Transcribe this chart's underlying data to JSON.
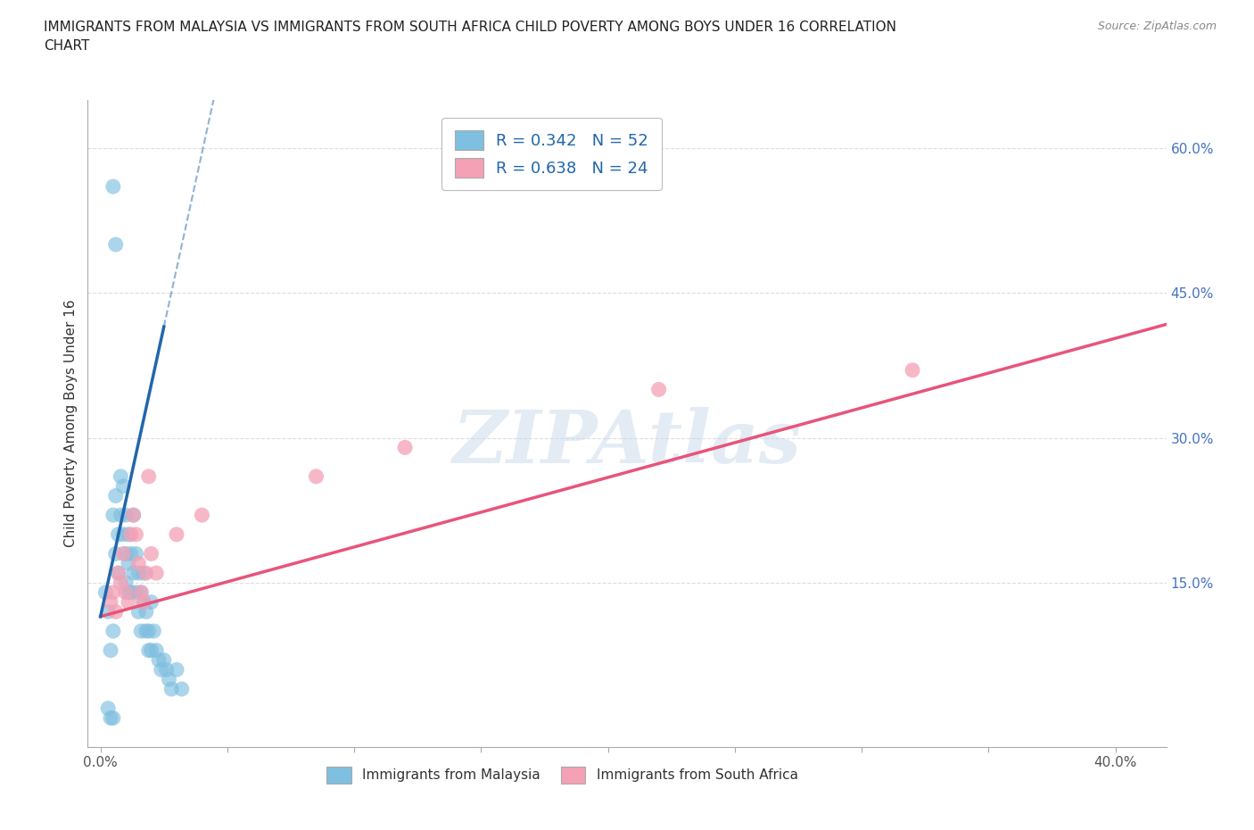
{
  "title": "IMMIGRANTS FROM MALAYSIA VS IMMIGRANTS FROM SOUTH AFRICA CHILD POVERTY AMONG BOYS UNDER 16 CORRELATION\nCHART",
  "source": "Source: ZipAtlas.com",
  "ylabel": "Child Poverty Among Boys Under 16",
  "xlim": [
    -0.005,
    0.42
  ],
  "ylim": [
    -0.02,
    0.65
  ],
  "xtick_vals": [
    0.0,
    0.05,
    0.1,
    0.15,
    0.2,
    0.25,
    0.3,
    0.35,
    0.4
  ],
  "xtick_labels_show": [
    "0.0%",
    "",
    "",
    "",
    "",
    "",
    "",
    "",
    "40.0%"
  ],
  "ytick_right_vals": [
    0.15,
    0.3,
    0.45,
    0.6
  ],
  "ytick_right_labels": [
    "15.0%",
    "30.0%",
    "45.0%",
    "60.0%"
  ],
  "malaysia_dot_color": "#7fbfdf",
  "sa_dot_color": "#f4a0b5",
  "trend_malaysia_color": "#2166ac",
  "trend_sa_color": "#e8547a",
  "watermark": "ZIPAtlas",
  "watermark_color": "#c8d8ea",
  "grid_color": "#dddddd",
  "axis_color": "#aaaaaa",
  "title_color": "#222222",
  "source_color": "#888888",
  "tick_color": "#555555",
  "right_tick_color": "#4472c4",
  "legend_text_color": "#2166ac",
  "malaysia_label": "Immigrants from Malaysia",
  "sa_label": "Immigrants from South Africa",
  "R_malaysia_text": "R = 0.342   N = 52",
  "R_sa_text": "R = 0.638   N = 24"
}
